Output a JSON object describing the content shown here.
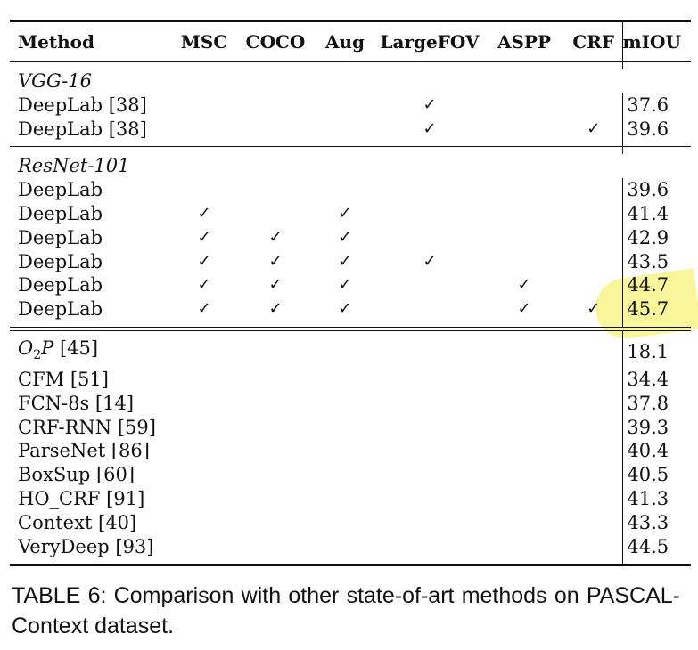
{
  "table": {
    "headers": [
      "Method",
      "MSC",
      "COCO",
      "Aug",
      "LargeFOV",
      "ASPP",
      "CRF",
      "mIOU"
    ],
    "groups": [
      {
        "label": "VGG-16",
        "rows": [
          {
            "method": "DeepLab [38]",
            "msc": "",
            "coco": "",
            "aug": "",
            "largefov": "✓",
            "aspp": "",
            "crf": "",
            "miou": "37.6"
          },
          {
            "method": "DeepLab [38]",
            "msc": "",
            "coco": "",
            "aug": "",
            "largefov": "✓",
            "aspp": "",
            "crf": "✓",
            "miou": "39.6"
          }
        ]
      },
      {
        "label": "ResNet-101",
        "rows": [
          {
            "method": "DeepLab",
            "msc": "",
            "coco": "",
            "aug": "",
            "largefov": "",
            "aspp": "",
            "crf": "",
            "miou": "39.6"
          },
          {
            "method": "DeepLab",
            "msc": "✓",
            "coco": "",
            "aug": "✓",
            "largefov": "",
            "aspp": "",
            "crf": "",
            "miou": "41.4"
          },
          {
            "method": "DeepLab",
            "msc": "✓",
            "coco": "✓",
            "aug": "✓",
            "largefov": "",
            "aspp": "",
            "crf": "",
            "miou": "42.9"
          },
          {
            "method": "DeepLab",
            "msc": "✓",
            "coco": "✓",
            "aug": "✓",
            "largefov": "✓",
            "aspp": "",
            "crf": "",
            "miou": "43.5"
          },
          {
            "method": "DeepLab",
            "msc": "✓",
            "coco": "✓",
            "aug": "✓",
            "largefov": "",
            "aspp": "✓",
            "crf": "",
            "miou": "44.7"
          },
          {
            "method": "DeepLab",
            "msc": "✓",
            "coco": "✓",
            "aug": "✓",
            "largefov": "",
            "aspp": "✓",
            "crf": "✓",
            "miou": "45.7"
          }
        ]
      }
    ],
    "others": [
      {
        "method_prefix": "O",
        "method_sub": "2",
        "method_suffix": "P",
        "method_ref": " [45]",
        "miou": "18.1"
      },
      {
        "method": "CFM [51]",
        "miou": "34.4"
      },
      {
        "method": "FCN-8s [14]",
        "miou": "37.8"
      },
      {
        "method": "CRF-RNN [59]",
        "miou": "39.3"
      },
      {
        "method": "ParseNet [86]",
        "miou": "40.4"
      },
      {
        "method": "BoxSup [60]",
        "miou": "40.5"
      },
      {
        "method": "HO_CRF [91]",
        "miou": "41.3"
      },
      {
        "method": "Context [40]",
        "miou": "43.3"
      },
      {
        "method": "VeryDeep [93]",
        "miou": "44.5"
      }
    ]
  },
  "highlight": {
    "color": "#f7f38a",
    "target_row": "DeepLab 45.7"
  },
  "caption": "TABLE 6: Comparison with other state-of-art methods on PASCAL-Context dataset."
}
